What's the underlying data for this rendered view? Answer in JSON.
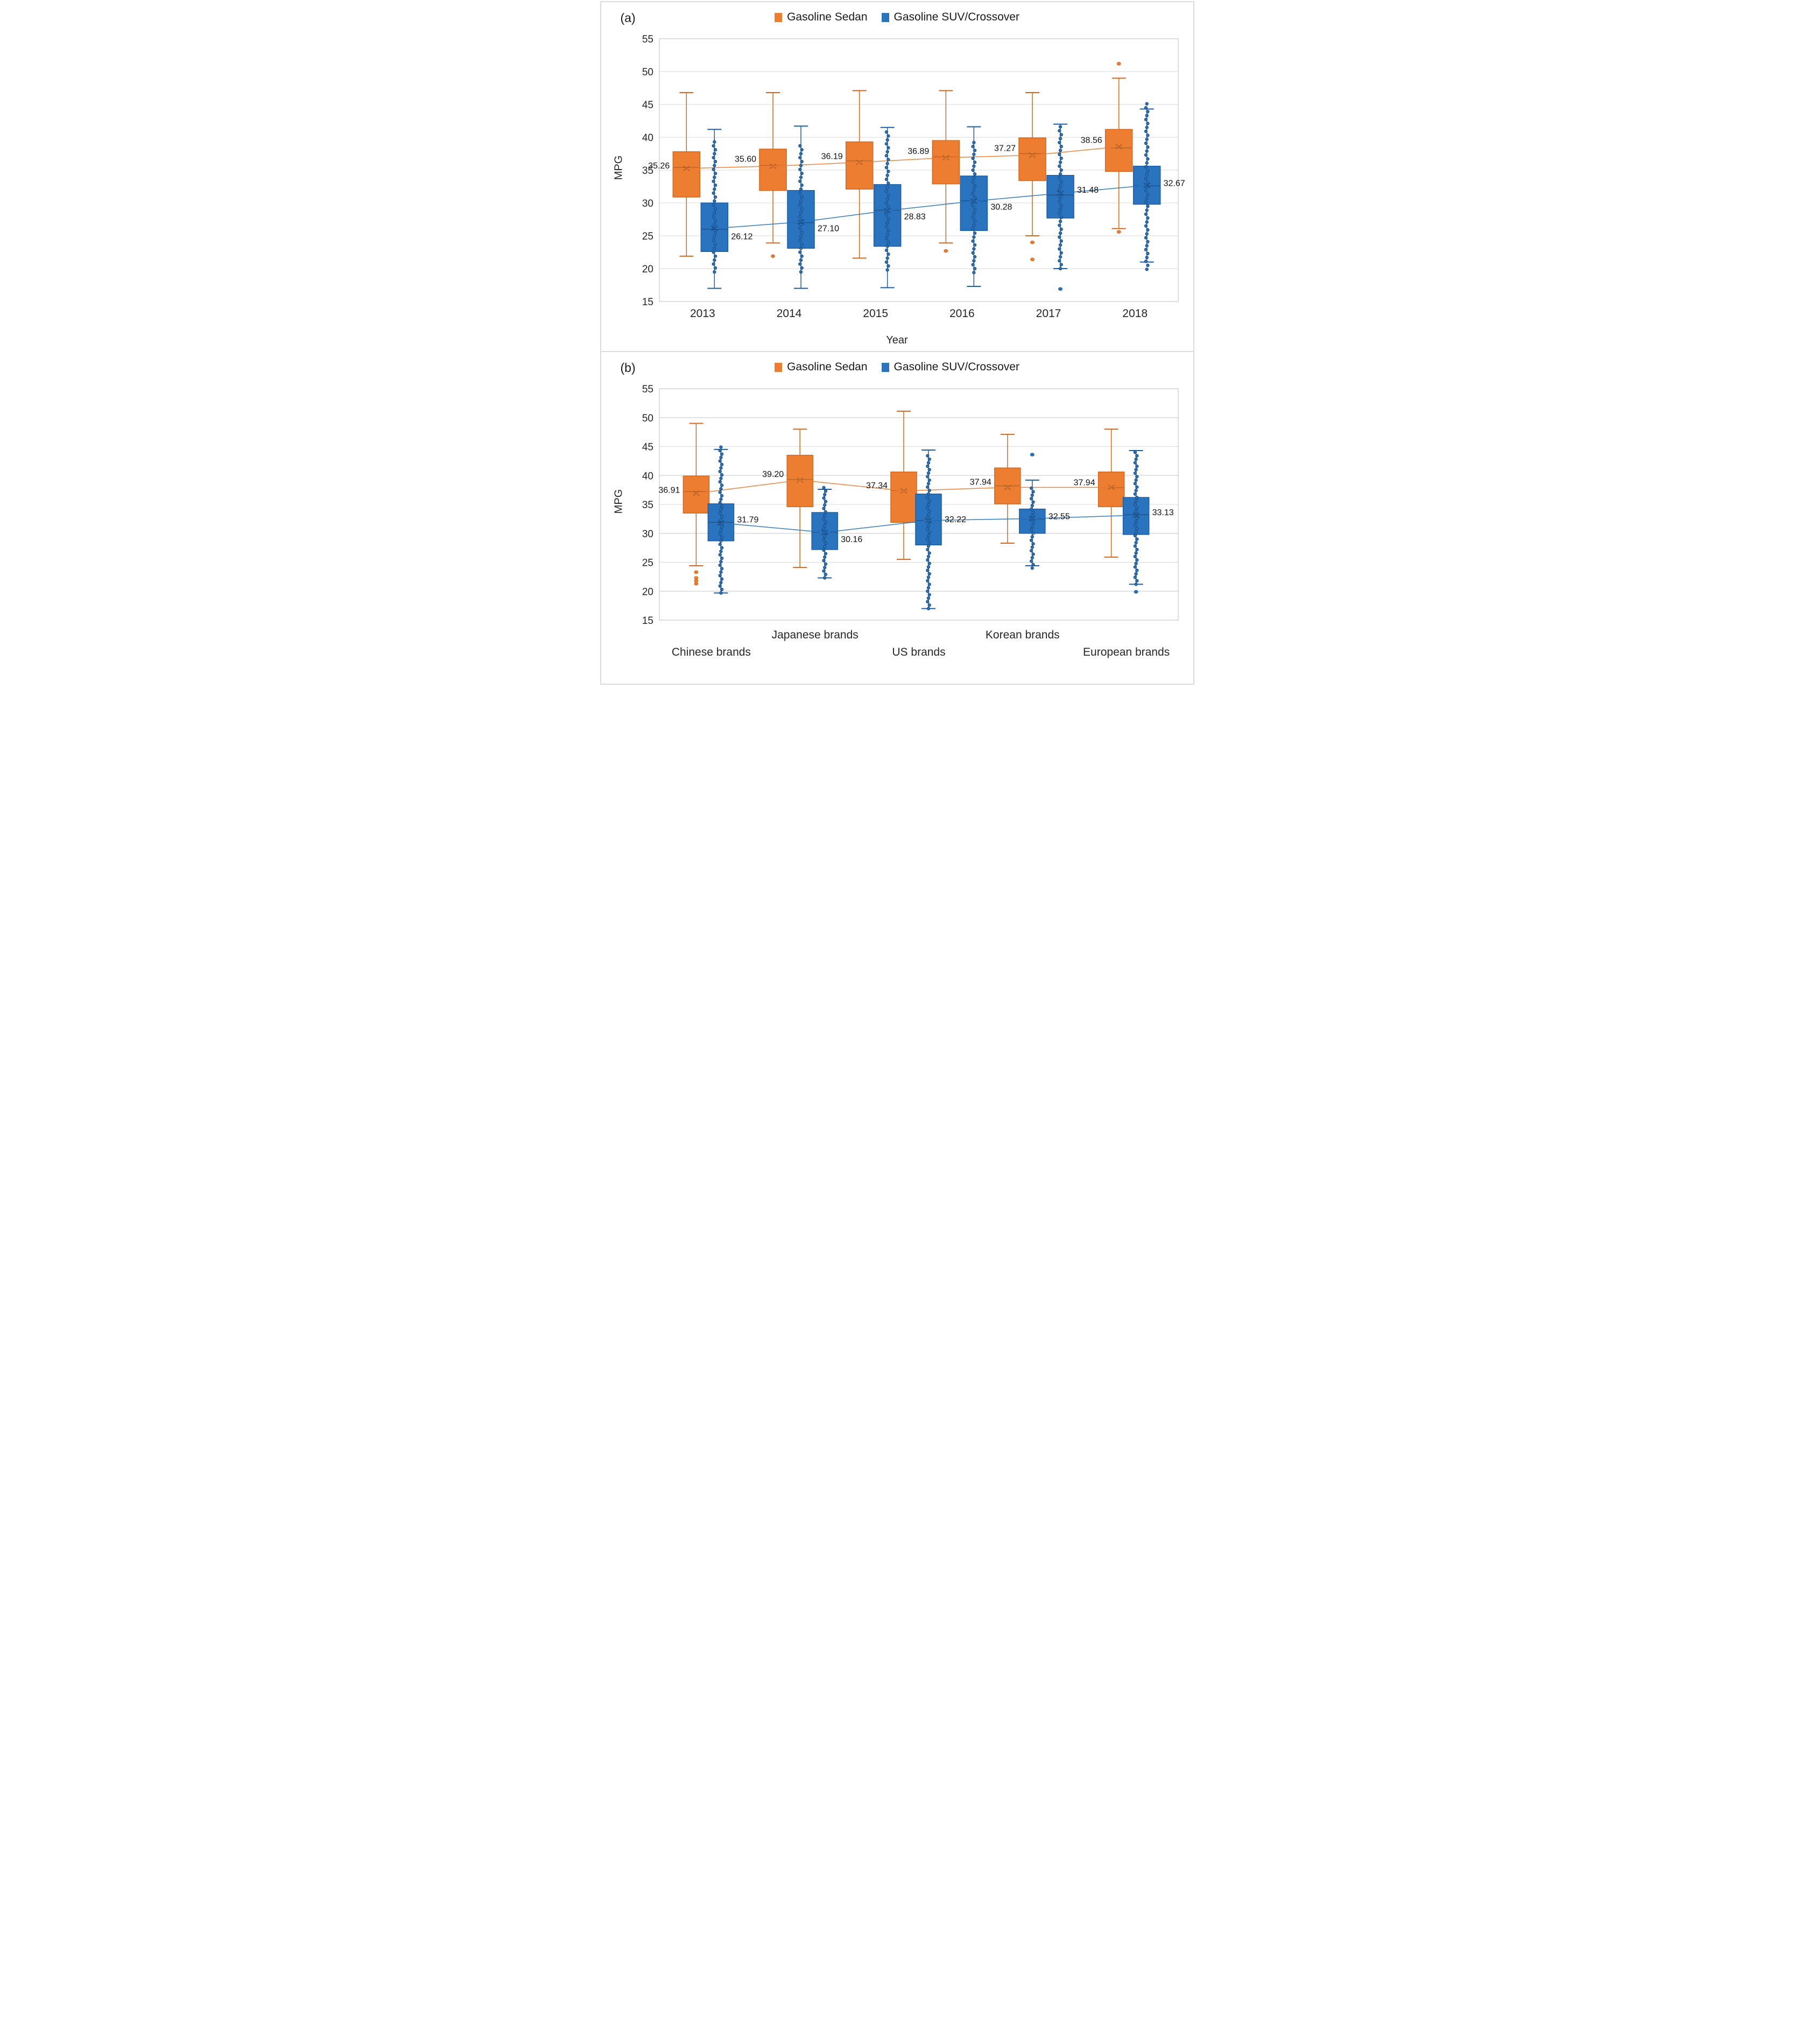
{
  "legend": {
    "sedan": "Gasoline Sedan",
    "suv": "Gasoline SUV/Crossover"
  },
  "colors": {
    "sedan_fill": "#ED7D31",
    "sedan_edge": "#D2691E",
    "sedan_dark": "#A95E26",
    "suv_fill": "#2A74BF",
    "suv_edge": "#1B5EA6",
    "suv_dark": "#17497E",
    "grid": "#D9D9D9",
    "plot_border": "#BFBFBF",
    "tick_text": "#262626",
    "label_text": "#111111"
  },
  "chart_data": [
    {
      "id": "a",
      "tag": "(a)",
      "type": "box",
      "xlabel": "Year",
      "ylabel": "MPG",
      "ylim": [
        15,
        55
      ],
      "ytick_step": 5,
      "yticks": [
        "15",
        "20",
        "25",
        "30",
        "35",
        "40",
        "45",
        "50",
        "55"
      ],
      "grid": "on",
      "legend_position": "top-center",
      "categories": [
        {
          "label": "2013",
          "row": 0
        },
        {
          "label": "2014",
          "row": 0
        },
        {
          "label": "2015",
          "row": 0
        },
        {
          "label": "2016",
          "row": 0
        },
        {
          "label": "2017",
          "row": 0
        },
        {
          "label": "2018",
          "row": 0
        }
      ],
      "series": [
        {
          "key": "sedan",
          "name": "Gasoline Sedan",
          "boxes": [
            {
              "low": 21.9,
              "q1": 30.9,
              "median": 35.4,
              "mean": 35.26,
              "q3": 37.8,
              "high": 46.8,
              "outliers": [],
              "label": "35.26",
              "ldy": -5
            },
            {
              "low": 23.9,
              "q1": 31.9,
              "median": 35.7,
              "mean": 35.6,
              "q3": 38.2,
              "high": 46.8,
              "outliers": [
                21.9
              ],
              "label": "35.60",
              "ldy": -13
            },
            {
              "low": 21.6,
              "q1": 32.1,
              "median": 36.4,
              "mean": 36.19,
              "q3": 39.3,
              "high": 47.1,
              "outliers": [],
              "label": "36.19",
              "ldy": -11
            },
            {
              "low": 23.9,
              "q1": 32.9,
              "median": 37.0,
              "mean": 36.89,
              "q3": 39.5,
              "high": 47.1,
              "outliers": [
                22.7
              ],
              "label": "36.89",
              "ldy": -12
            },
            {
              "low": 25.0,
              "q1": 33.4,
              "median": 37.5,
              "mean": 37.27,
              "q3": 39.9,
              "high": 46.8,
              "outliers": [
                24.0,
                21.4
              ],
              "label": "37.27",
              "ldy": -13
            },
            {
              "low": 26.1,
              "q1": 34.8,
              "median": 38.4,
              "mean": 38.56,
              "q3": 41.2,
              "high": 49.0,
              "outliers": [
                51.2,
                25.6
              ],
              "label": "38.56",
              "ldy": -12
            }
          ]
        },
        {
          "key": "suv",
          "name": "Gasoline SUV/Crossover",
          "boxes": [
            {
              "low": 17.0,
              "q1": 22.6,
              "median": 26.0,
              "mean": 26.12,
              "q3": 30.0,
              "high": 41.2,
              "dots": [
                19.5,
                39.5
              ],
              "outliers": [],
              "label": "26.12",
              "ldy": 15
            },
            {
              "low": 17.0,
              "q1": 23.1,
              "median": 27.0,
              "mean": 27.1,
              "q3": 31.9,
              "high": 41.7,
              "dots": [
                19.5,
                39.2
              ],
              "outliers": [],
              "label": "27.10",
              "ldy": 12
            },
            {
              "low": 17.1,
              "q1": 23.4,
              "median": 28.9,
              "mean": 28.83,
              "q3": 32.8,
              "high": 41.5,
              "dots": [
                19.8,
                40.9
              ],
              "outliers": [],
              "label": "28.83",
              "ldy": 11
            },
            {
              "low": 17.3,
              "q1": 25.8,
              "median": 30.3,
              "mean": 30.28,
              "q3": 34.1,
              "high": 41.6,
              "dots": [
                19.4,
                39.6
              ],
              "outliers": [],
              "label": "30.28",
              "ldy": 11
            },
            {
              "low": 20.0,
              "q1": 27.7,
              "median": 31.2,
              "mean": 31.48,
              "q3": 34.2,
              "high": 42.0,
              "dots": [
                20.0,
                41.9
              ],
              "outliers": [
                16.9
              ],
              "label": "31.48",
              "ldy": -6
            },
            {
              "low": 21.0,
              "q1": 29.8,
              "median": 32.6,
              "mean": 32.67,
              "q3": 35.6,
              "high": 44.3,
              "dots": [
                19.9,
                45.2
              ],
              "outliers": [],
              "label": "32.67",
              "ldy": -4
            }
          ]
        }
      ]
    },
    {
      "id": "b",
      "tag": "(b)",
      "type": "box",
      "xlabel": "",
      "ylabel": "MPG",
      "ylim": [
        15,
        55
      ],
      "ytick_step": 5,
      "yticks": [
        "15",
        "20",
        "25",
        "30",
        "35",
        "40",
        "45",
        "50",
        "55"
      ],
      "grid": "on",
      "legend_position": "top-center",
      "categories": [
        {
          "label": "Chinese brands",
          "row": 1
        },
        {
          "label": "Japanese brands",
          "row": 0
        },
        {
          "label": "US brands",
          "row": 1
        },
        {
          "label": "Korean brands",
          "row": 0
        },
        {
          "label": "European brands",
          "row": 1
        }
      ],
      "series": [
        {
          "key": "sedan",
          "name": "Gasoline Sedan",
          "boxes": [
            {
              "low": 24.4,
              "q1": 33.5,
              "median": 37.2,
              "mean": 36.91,
              "q3": 39.9,
              "high": 49.0,
              "outliers": [
                23.3,
                22.3,
                21.8,
                21.3
              ],
              "label": "36.91",
              "ldy": -6
            },
            {
              "low": 24.1,
              "q1": 34.6,
              "median": 39.3,
              "mean": 39.2,
              "q3": 43.5,
              "high": 48.0,
              "outliers": [],
              "label": "39.20",
              "ldy": -11
            },
            {
              "low": 25.5,
              "q1": 31.9,
              "median": 37.4,
              "mean": 37.34,
              "q3": 40.6,
              "high": 51.1,
              "outliers": [],
              "label": "37.34",
              "ldy": -10
            },
            {
              "low": 28.3,
              "q1": 35.1,
              "median": 38.2,
              "mean": 37.94,
              "q3": 41.3,
              "high": 47.1,
              "outliers": [],
              "label": "37.94",
              "ldy": -10
            },
            {
              "low": 25.9,
              "q1": 34.6,
              "median": 37.9,
              "mean": 37.94,
              "q3": 40.6,
              "high": 48.0,
              "outliers": [],
              "label": "37.94",
              "ldy": -9
            }
          ]
        },
        {
          "key": "suv",
          "name": "Gasoline SUV/Crossover",
          "boxes": [
            {
              "low": 19.7,
              "q1": 28.7,
              "median": 31.9,
              "mean": 31.79,
              "q3": 35.1,
              "high": 44.5,
              "dots": [
                19.7,
                45.3
              ],
              "outliers": [],
              "label": "31.79",
              "ldy": -6
            },
            {
              "low": 22.3,
              "q1": 27.2,
              "median": 30.2,
              "mean": 30.16,
              "q3": 33.6,
              "high": 37.6,
              "dots": [
                22.3,
                37.9
              ],
              "outliers": [],
              "label": "30.16",
              "ldy": 13
            },
            {
              "low": 17.0,
              "q1": 28.0,
              "median": 32.2,
              "mean": 32.22,
              "q3": 36.8,
              "high": 44.4,
              "dots": [
                17.0,
                43.6
              ],
              "outliers": [],
              "label": "32.22",
              "ldy": -2
            },
            {
              "low": 24.4,
              "q1": 30.0,
              "median": 32.5,
              "mean": 32.55,
              "q3": 34.2,
              "high": 39.2,
              "dots": [
                24.0,
                38.2
              ],
              "outliers": [
                43.6
              ],
              "label": "32.55",
              "ldy": -4
            },
            {
              "low": 21.2,
              "q1": 29.8,
              "median": 33.2,
              "mean": 33.13,
              "q3": 36.2,
              "high": 44.3,
              "dots": [
                21.2,
                44.3
              ],
              "outliers": [
                19.9
              ],
              "label": "33.13",
              "ldy": -5
            }
          ]
        }
      ]
    }
  ]
}
